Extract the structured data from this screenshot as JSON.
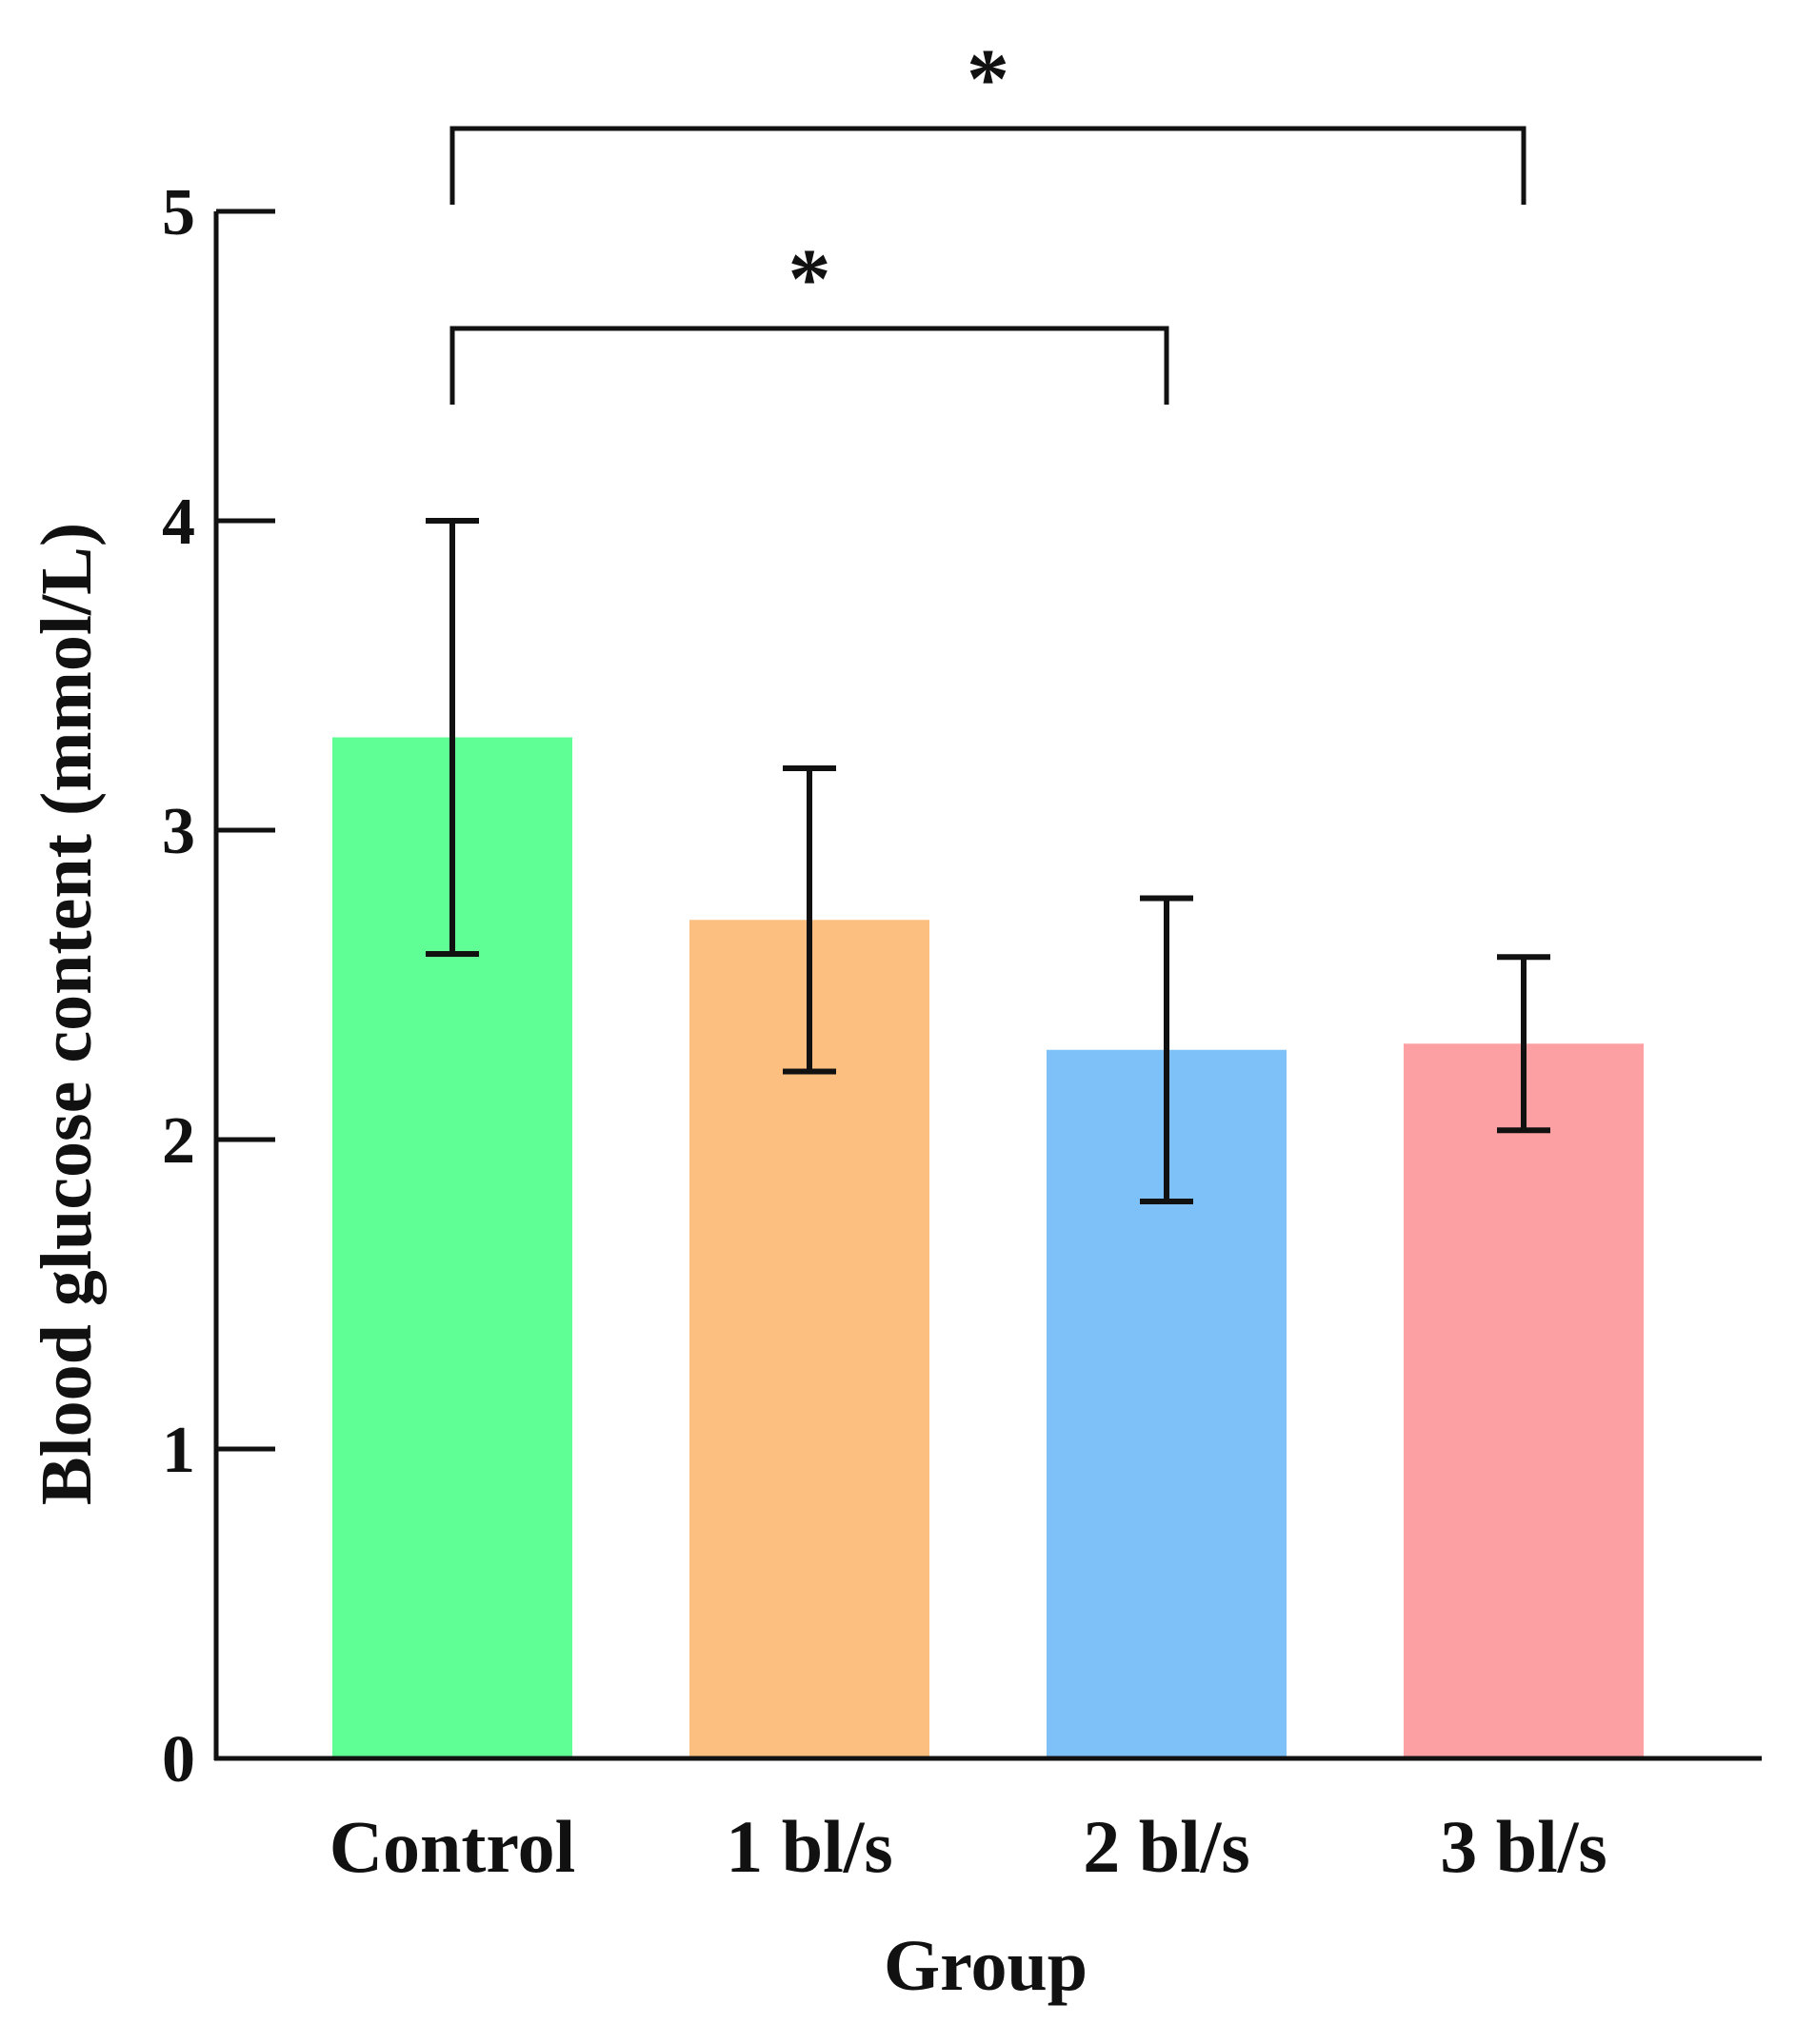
{
  "chart_data": {
    "type": "bar",
    "xlabel": "Group",
    "ylabel": "Blood glucose content (mmol/L)",
    "ylim": [
      0,
      5
    ],
    "yticks": [
      0,
      1,
      2,
      3,
      4,
      5
    ],
    "ytick_labels": [
      "0",
      "1",
      "2",
      "3",
      "4",
      "5"
    ],
    "grid": false,
    "categories": [
      "Control",
      "1 bl/s",
      "2 bl/s",
      "3 bl/s"
    ],
    "values": [
      3.3,
      2.71,
      2.29,
      2.31
    ],
    "error": [
      0.7,
      0.49,
      0.49,
      0.28
    ],
    "colors": [
      "#5fff96",
      "#fdbf80",
      "#7ec0f8",
      "#fda0a3"
    ],
    "significance": [
      {
        "from": "Control",
        "to": "3 bl/s",
        "label": "*"
      },
      {
        "from": "Control",
        "to": "2 bl/s",
        "label": "*"
      }
    ]
  }
}
